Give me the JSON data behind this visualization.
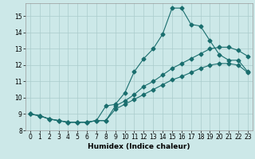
{
  "xlabel": "Humidex (Indice chaleur)",
  "ylabel": "",
  "bg_color": "#cce8e8",
  "grid_color": "#aacccc",
  "line_color": "#1a6e6e",
  "xlim": [
    -0.5,
    23.5
  ],
  "ylim": [
    8,
    15.8
  ],
  "xticks": [
    0,
    1,
    2,
    3,
    4,
    5,
    6,
    7,
    8,
    9,
    10,
    11,
    12,
    13,
    14,
    15,
    16,
    17,
    18,
    19,
    20,
    21,
    22,
    23
  ],
  "yticks": [
    8,
    9,
    10,
    11,
    12,
    13,
    14,
    15
  ],
  "line1_x": [
    0,
    1,
    2,
    3,
    4,
    5,
    6,
    7,
    8,
    9,
    10,
    11,
    12,
    13,
    14,
    15,
    16,
    17,
    18,
    19,
    20,
    21,
    22,
    23
  ],
  "line1_y": [
    9.0,
    8.9,
    8.7,
    8.6,
    8.5,
    8.5,
    8.5,
    8.6,
    9.5,
    9.6,
    10.3,
    11.6,
    12.4,
    13.0,
    13.9,
    15.5,
    15.5,
    14.5,
    14.4,
    13.5,
    12.65,
    12.3,
    12.3,
    11.6
  ],
  "line2_x": [
    0,
    1,
    2,
    3,
    4,
    5,
    6,
    7,
    8,
    9,
    10,
    11,
    12,
    13,
    14,
    15,
    16,
    17,
    18,
    19,
    20,
    21,
    22,
    23
  ],
  "line2_y": [
    9.0,
    8.9,
    8.7,
    8.6,
    8.5,
    8.5,
    8.5,
    8.6,
    8.6,
    9.5,
    9.8,
    10.2,
    10.7,
    11.0,
    11.4,
    11.8,
    12.1,
    12.4,
    12.7,
    13.0,
    13.1,
    13.1,
    12.9,
    12.55
  ],
  "line3_x": [
    0,
    1,
    2,
    3,
    4,
    5,
    6,
    7,
    8,
    9,
    10,
    11,
    12,
    13,
    14,
    15,
    16,
    17,
    18,
    19,
    20,
    21,
    22,
    23
  ],
  "line3_y": [
    9.0,
    8.9,
    8.7,
    8.6,
    8.5,
    8.5,
    8.5,
    8.6,
    8.6,
    9.3,
    9.6,
    9.9,
    10.2,
    10.5,
    10.8,
    11.1,
    11.3,
    11.55,
    11.8,
    12.0,
    12.1,
    12.1,
    12.0,
    11.55
  ],
  "marker_size": 2.5,
  "line_width": 0.8,
  "tick_fontsize": 5.5,
  "label_fontsize": 6.5
}
